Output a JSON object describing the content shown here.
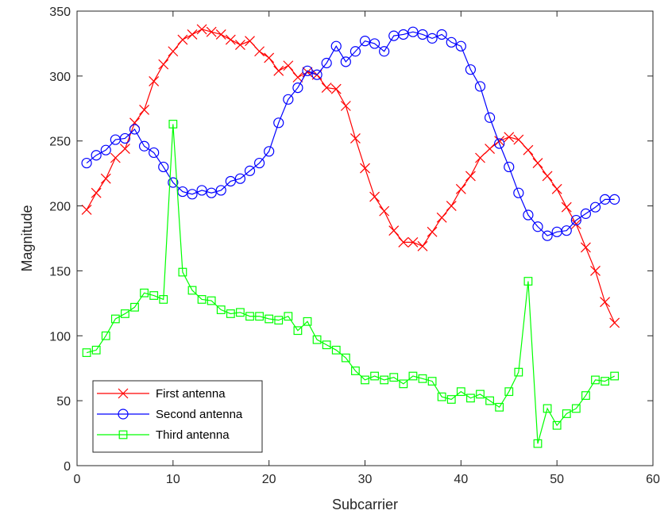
{
  "chart_data": {
    "type": "line",
    "title": "",
    "xlabel": "Subcarrier",
    "ylabel": "Magnitude",
    "xlim": [
      0,
      60
    ],
    "ylim": [
      0,
      350
    ],
    "xticks": [
      0,
      10,
      20,
      30,
      40,
      50,
      60
    ],
    "yticks": [
      0,
      50,
      100,
      150,
      200,
      250,
      300,
      350
    ],
    "xtick_labels": [
      "0",
      "10",
      "20",
      "30",
      "40",
      "50",
      "60"
    ],
    "ytick_labels": [
      "0",
      "50",
      "100",
      "150",
      "200",
      "250",
      "300",
      "350"
    ],
    "grid": false,
    "legend_position": "bottom-left",
    "x": [
      1,
      2,
      3,
      4,
      5,
      6,
      7,
      8,
      9,
      10,
      11,
      12,
      13,
      14,
      15,
      16,
      17,
      18,
      19,
      20,
      21,
      22,
      23,
      24,
      25,
      26,
      27,
      28,
      29,
      30,
      31,
      32,
      33,
      34,
      35,
      36,
      37,
      38,
      39,
      40,
      41,
      42,
      43,
      44,
      45,
      46,
      47,
      48,
      49,
      50,
      51,
      52,
      53,
      54,
      55,
      56
    ],
    "series": [
      {
        "name": "First antenna",
        "color": "#ff0000",
        "marker": "x",
        "values": [
          197,
          210,
          221,
          237,
          244,
          264,
          274,
          296,
          309,
          319,
          328,
          332,
          336,
          334,
          332,
          328,
          324,
          327,
          319,
          314,
          304,
          308,
          299,
          303,
          301,
          291,
          290,
          277,
          252,
          229,
          207,
          196,
          181,
          172,
          172,
          169,
          180,
          191,
          200,
          213,
          223,
          237,
          244,
          250,
          253,
          251,
          243,
          233,
          223,
          213,
          199,
          186,
          168,
          150,
          126,
          110
        ]
      },
      {
        "name": "Second antenna",
        "color": "#0000ff",
        "marker": "o",
        "values": [
          233,
          239,
          243,
          251,
          252,
          259,
          246,
          241,
          230,
          218,
          211,
          209,
          212,
          210,
          212,
          219,
          221,
          227,
          233,
          242,
          264,
          282,
          291,
          304,
          301,
          310,
          323,
          311,
          319,
          327,
          325,
          319,
          331,
          332,
          334,
          332,
          329,
          332,
          326,
          323,
          305,
          292,
          268,
          248,
          230,
          210,
          193,
          184,
          177,
          180,
          181,
          189,
          194,
          199,
          205,
          205
        ]
      },
      {
        "name": "Third antenna",
        "color": "#00ff00",
        "marker": "square",
        "values": [
          87,
          89,
          100,
          113,
          117,
          122,
          133,
          131,
          128,
          263,
          149,
          135,
          128,
          127,
          120,
          117,
          118,
          115,
          115,
          113,
          112,
          115,
          104,
          111,
          97,
          93,
          89,
          83,
          73,
          66,
          69,
          66,
          68,
          63,
          69,
          67,
          65,
          53,
          51,
          57,
          52,
          55,
          50,
          45,
          57,
          72,
          142,
          17,
          44,
          31,
          40,
          44,
          54,
          66,
          65,
          69
        ]
      }
    ]
  }
}
